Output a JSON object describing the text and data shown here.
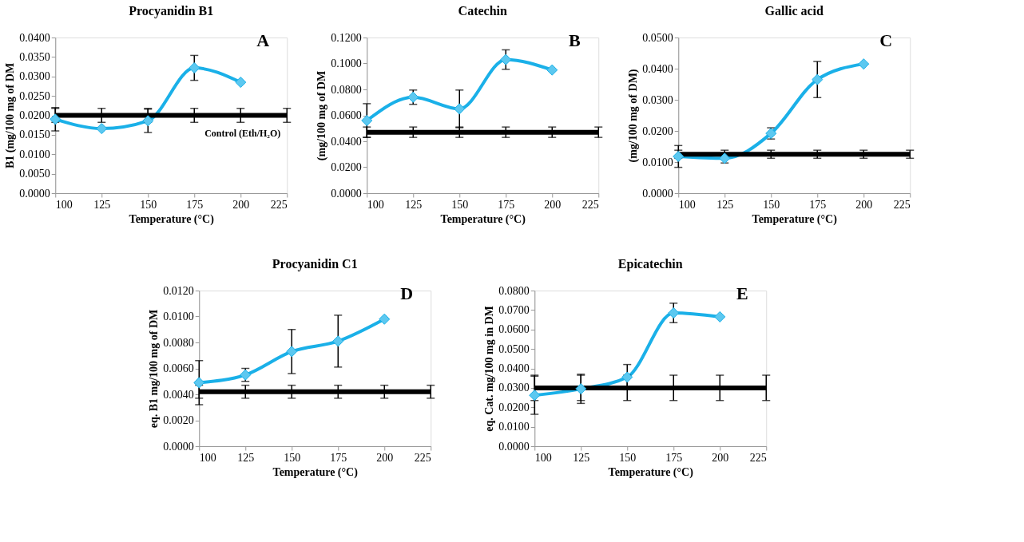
{
  "chart_data": [
    {
      "type": "line",
      "title": "Procyanidin B1",
      "xlabel": "Temperature (°C)",
      "ylabel": "B1 (mg/100 mg of DM",
      "annotations": [
        "A"
      ],
      "xlim": [
        100,
        225
      ],
      "xticks": [
        100,
        125,
        150,
        175,
        200,
        225
      ],
      "ylim": [
        0,
        0.04
      ],
      "yticks": [
        {
          "value": 0,
          "label": "0.0000"
        },
        {
          "value": 0.005,
          "label": "0.0050"
        },
        {
          "value": 0.01,
          "label": "0.0100"
        },
        {
          "value": 0.015,
          "label": "0.0150"
        },
        {
          "value": 0.02,
          "label": "0.0200"
        },
        {
          "value": 0.025,
          "label": "0.0250"
        },
        {
          "value": 0.03,
          "label": "0.0300"
        },
        {
          "value": 0.035,
          "label": "0.0350"
        },
        {
          "value": 0.04,
          "label": "0.0400"
        }
      ],
      "grid": false,
      "legend": false,
      "series": [
        {
          "color": "#1ab0e8",
          "marker": "diamond",
          "x": [
            100,
            125,
            150,
            175,
            200
          ],
          "values": [
            0.019,
            0.0166,
            0.0186,
            0.0322,
            0.0285
          ],
          "errors": [
            0.003,
            null,
            0.003,
            0.0032,
            null
          ]
        },
        {
          "name": "Control (Eth/H₂O)",
          "color": "#000000",
          "marker": "none",
          "x": [
            100,
            125,
            150,
            175,
            200,
            225
          ],
          "values": [
            0.02,
            0.02,
            0.02,
            0.02,
            0.02,
            0.02
          ],
          "errors": [
            0.0018,
            0.0018,
            0.0018,
            0.0018,
            0.0018,
            0.0018
          ]
        }
      ]
    },
    {
      "type": "line",
      "title": "Catechin",
      "xlabel": "Temperature (°C)",
      "ylabel": "(mg/100 mg of DM",
      "annotations": [
        "B"
      ],
      "xlim": [
        100,
        225
      ],
      "xticks": [
        100,
        125,
        150,
        175,
        200,
        225
      ],
      "ylim": [
        0,
        0.12
      ],
      "yticks": [
        {
          "value": 0,
          "label": "0.0000"
        },
        {
          "value": 0.02,
          "label": "0.0200"
        },
        {
          "value": 0.04,
          "label": "0.0400"
        },
        {
          "value": 0.06,
          "label": "0.0600"
        },
        {
          "value": 0.08,
          "label": "0.0800"
        },
        {
          "value": 0.1,
          "label": "0.1000"
        },
        {
          "value": 0.12,
          "label": "0.1200"
        }
      ],
      "grid": false,
      "legend": false,
      "series": [
        {
          "color": "#1ab0e8",
          "marker": "diamond",
          "x": [
            100,
            125,
            150,
            175,
            200
          ],
          "values": [
            0.056,
            0.074,
            0.065,
            0.103,
            0.095
          ],
          "errors": [
            0.013,
            0.0055,
            0.0145,
            0.0075,
            null
          ]
        },
        {
          "color": "#000000",
          "marker": "none",
          "x": [
            100,
            125,
            150,
            175,
            200,
            225
          ],
          "values": [
            0.047,
            0.047,
            0.047,
            0.047,
            0.047,
            0.047
          ],
          "errors": [
            0.004,
            0.004,
            0.004,
            0.004,
            0.004,
            0.004
          ]
        }
      ]
    },
    {
      "type": "line",
      "title": "Gallic acid",
      "xlabel": "Temperature (°C)",
      "ylabel": "(mg/100 mg of DM)",
      "annotations": [
        "C"
      ],
      "xlim": [
        100,
        225
      ],
      "xticks": [
        100,
        125,
        150,
        175,
        200,
        225
      ],
      "ylim": [
        0,
        0.05
      ],
      "yticks": [
        {
          "value": 0,
          "label": "0.0000"
        },
        {
          "value": 0.01,
          "label": "0.0100"
        },
        {
          "value": 0.02,
          "label": "0.0200"
        },
        {
          "value": 0.03,
          "label": "0.0300"
        },
        {
          "value": 0.04,
          "label": "0.0400"
        },
        {
          "value": 0.05,
          "label": "0.0500"
        }
      ],
      "grid": false,
      "legend": false,
      "series": [
        {
          "color": "#1ab0e8",
          "marker": "diamond",
          "x": [
            100,
            125,
            150,
            175,
            200
          ],
          "values": [
            0.0118,
            0.0112,
            0.0192,
            0.0365,
            0.0415
          ],
          "errors": [
            0.0035,
            0.0015,
            0.0018,
            0.0058,
            null
          ]
        },
        {
          "color": "#000000",
          "marker": "none",
          "x": [
            100,
            125,
            150,
            175,
            200,
            225
          ],
          "values": [
            0.0125,
            0.0125,
            0.0125,
            0.0125,
            0.0125,
            0.0125
          ],
          "errors": [
            0.0013,
            0.0013,
            0.0013,
            0.0013,
            0.0013,
            0.0013
          ]
        }
      ]
    },
    {
      "type": "line",
      "title": "Procyanidin C1",
      "xlabel": "Temperature (°C)",
      "ylabel": "eq. B1 mg/100 mg of DM",
      "annotations": [
        "D"
      ],
      "xlim": [
        100,
        225
      ],
      "xticks": [
        100,
        125,
        150,
        175,
        200,
        225
      ],
      "ylim": [
        0,
        0.012
      ],
      "yticks": [
        {
          "value": 0,
          "label": "0.0000"
        },
        {
          "value": 0.002,
          "label": "0.0020"
        },
        {
          "value": 0.004,
          "label": "0.0040"
        },
        {
          "value": 0.006,
          "label": "0.0060"
        },
        {
          "value": 0.008,
          "label": "0.0080"
        },
        {
          "value": 0.01,
          "label": "0.0100"
        },
        {
          "value": 0.012,
          "label": "0.0120"
        }
      ],
      "grid": false,
      "legend": false,
      "series": [
        {
          "color": "#1ab0e8",
          "marker": "diamond",
          "x": [
            100,
            125,
            150,
            175,
            200
          ],
          "values": [
            0.0049,
            0.0055,
            0.0073,
            0.0081,
            0.0098
          ],
          "errors": [
            0.0017,
            0.0005,
            0.0017,
            0.002,
            null
          ]
        },
        {
          "color": "#000000",
          "marker": "none",
          "x": [
            100,
            125,
            150,
            175,
            200,
            225
          ],
          "values": [
            0.0042,
            0.0042,
            0.0042,
            0.0042,
            0.0042,
            0.0042
          ],
          "errors": [
            0.0005,
            0.0005,
            0.0005,
            0.0005,
            0.0005,
            0.0005
          ]
        }
      ]
    },
    {
      "type": "line",
      "title": "Epicatechin",
      "xlabel": "Temperature (°C)",
      "ylabel": "eq. Cat. mg/100 mg in DM",
      "annotations": [
        "E"
      ],
      "xlim": [
        100,
        225
      ],
      "xticks": [
        100,
        125,
        150,
        175,
        200,
        225
      ],
      "ylim": [
        0,
        0.08
      ],
      "yticks": [
        {
          "value": 0,
          "label": "0.0000"
        },
        {
          "value": 0.01,
          "label": "0.0100"
        },
        {
          "value": 0.02,
          "label": "0.0200"
        },
        {
          "value": 0.03,
          "label": "0.0300"
        },
        {
          "value": 0.04,
          "label": "0.0400"
        },
        {
          "value": 0.05,
          "label": "0.0500"
        },
        {
          "value": 0.06,
          "label": "0.0600"
        },
        {
          "value": 0.07,
          "label": "0.0700"
        },
        {
          "value": 0.08,
          "label": "0.0800"
        }
      ],
      "grid": false,
      "legend": false,
      "series": [
        {
          "color": "#1ab0e8",
          "marker": "diamond",
          "x": [
            100,
            125,
            150,
            175,
            200
          ],
          "values": [
            0.0262,
            0.0295,
            0.0355,
            0.0685,
            0.0665
          ],
          "errors": [
            0.0098,
            0.0075,
            0.0065,
            0.005,
            null
          ]
        },
        {
          "color": "#000000",
          "marker": "none",
          "x": [
            100,
            125,
            150,
            175,
            200,
            225
          ],
          "values": [
            0.03,
            0.03,
            0.03,
            0.03,
            0.03,
            0.03
          ],
          "errors": [
            0.0065,
            0.0065,
            0.0065,
            0.0065,
            0.0065,
            0.0065
          ]
        }
      ]
    }
  ]
}
